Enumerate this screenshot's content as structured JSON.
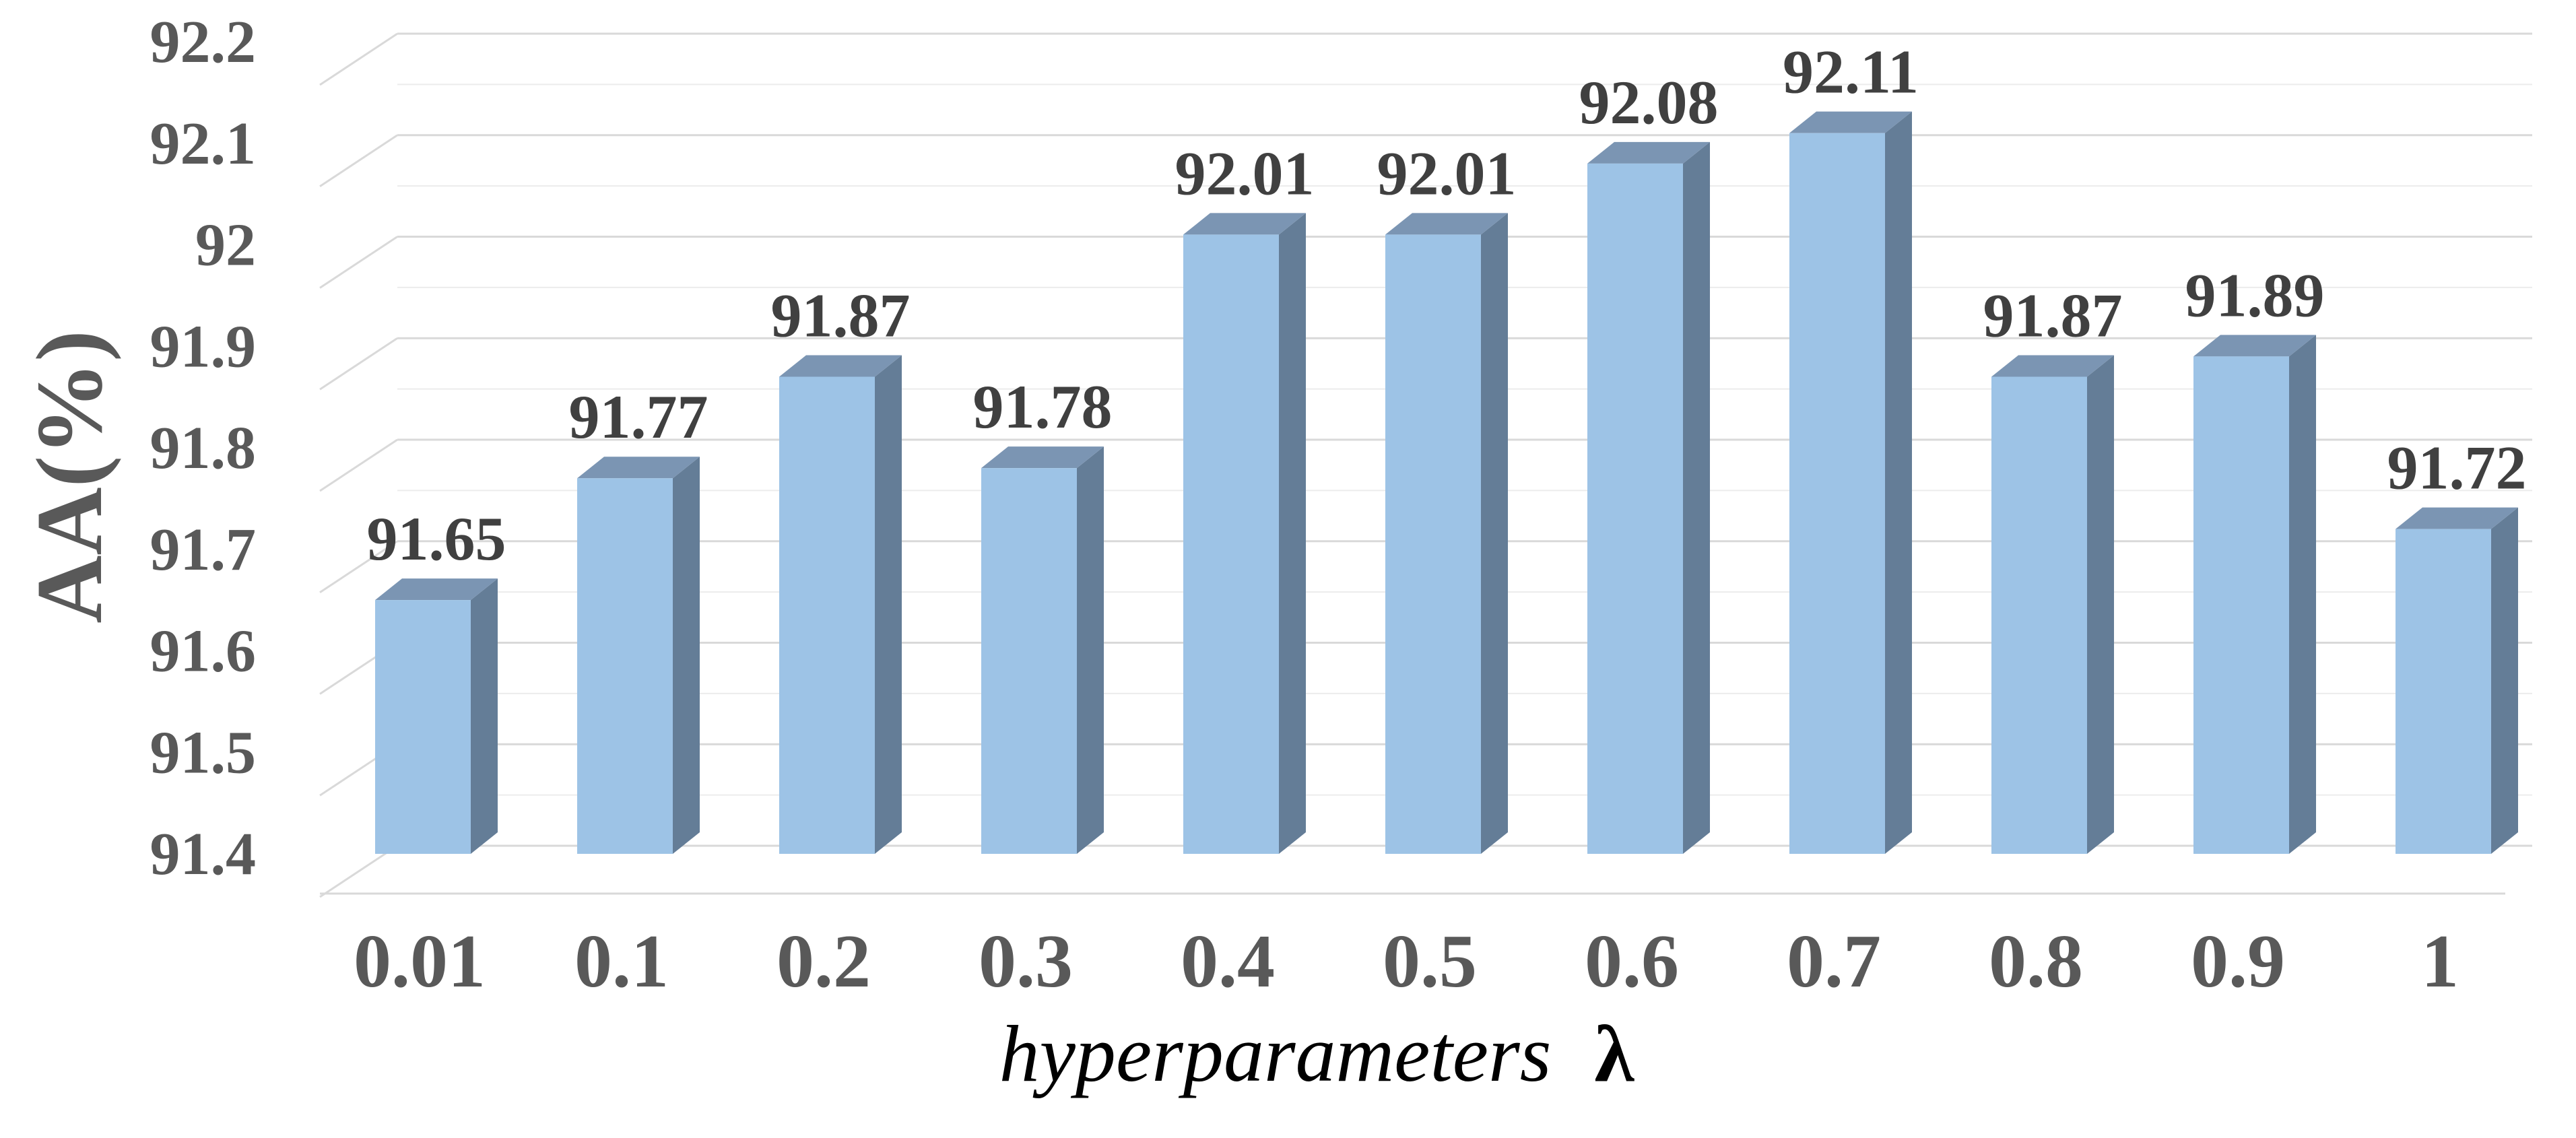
{
  "chart_data": {
    "type": "bar",
    "three_d": true,
    "categories": [
      "0.01",
      "0.1",
      "0.2",
      "0.3",
      "0.4",
      "0.5",
      "0.6",
      "0.7",
      "0.8",
      "0.9",
      "1"
    ],
    "values": [
      91.65,
      91.77,
      91.87,
      91.78,
      92.01,
      92.01,
      92.08,
      92.11,
      91.87,
      91.89,
      91.72
    ],
    "data_labels": [
      "91.65",
      "91.77",
      "91.87",
      "91.78",
      "92.01",
      "92.01",
      "92.08",
      "92.11",
      "91.87",
      "91.89",
      "91.72"
    ],
    "ylim": [
      91.4,
      92.2
    ],
    "yticks": [
      "91.4",
      "91.5",
      "91.6",
      "91.7",
      "91.8",
      "91.9",
      "92",
      "92.1",
      "92.2"
    ],
    "ylabel": "AA(%)",
    "xlabel": "hyperparameters",
    "xlabel_symbol": "λ",
    "grid": true,
    "legend": "none",
    "colors": {
      "bar_front": "#9dc3e6",
      "bar_side": "#647d97",
      "bar_top": "#7b95b3",
      "grid": "#d9d9d9"
    }
  }
}
